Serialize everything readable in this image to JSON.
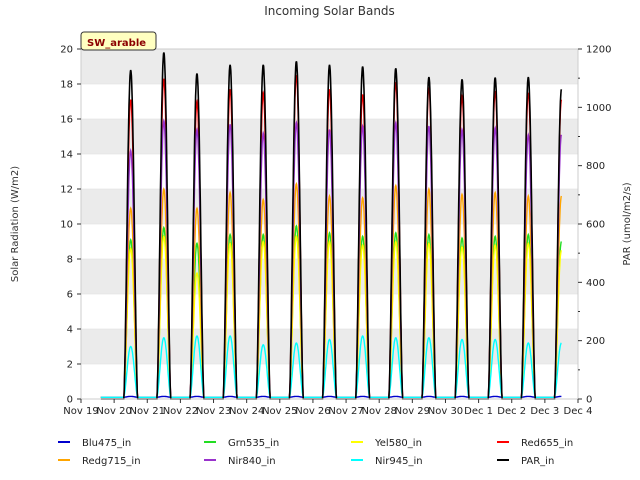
{
  "chart_data": {
    "type": "line",
    "title": "Incoming Solar Bands",
    "badge": "SW_arable",
    "ylabel": "Solar Radiation (W/m2)",
    "y2label": "PAR (umol/m2/s)",
    "ylim": [
      0,
      20
    ],
    "y2lim": [
      0,
      1200
    ],
    "yticks": [
      "0",
      "2",
      "4",
      "6",
      "8",
      "10",
      "12",
      "14",
      "16",
      "18",
      "20"
    ],
    "y2ticks": [
      "0",
      "200",
      "400",
      "600",
      "800",
      "1000",
      "1200"
    ],
    "xticks": [
      "Nov 19",
      "Nov 20",
      "Nov 21",
      "Nov 22",
      "Nov 23",
      "Nov 24",
      "Nov 25",
      "Nov 26",
      "Nov 27",
      "Nov 28",
      "Nov 29",
      "Nov 30",
      "Dec 1",
      "Dec 2",
      "Dec 3",
      "Dec 4"
    ],
    "xlim": [
      0,
      15
    ],
    "grid": "horizontal bands",
    "legend_position": "bottom",
    "day_index": [
      1,
      2,
      3,
      4,
      5,
      6,
      7,
      8,
      9,
      10,
      11,
      12,
      13,
      14
    ],
    "series": [
      {
        "name": "Blu475_in",
        "color": "#0000cd",
        "axis": "left",
        "peaks": [
          0.15,
          0.15,
          0.15,
          0.15,
          0.15,
          0.15,
          0.15,
          0.15,
          0.15,
          0.15,
          0.15,
          0.15,
          0.15,
          0.15
        ]
      },
      {
        "name": "Grn535_in",
        "color": "#22dd22",
        "axis": "left",
        "peaks": [
          9.1,
          9.8,
          8.9,
          9.4,
          9.4,
          9.9,
          9.5,
          9.3,
          9.5,
          9.4,
          9.2,
          9.3,
          9.4,
          9.0
        ]
      },
      {
        "name": "Yel580_in",
        "color": "#ffff00",
        "axis": "left",
        "peaks": [
          8.6,
          9.3,
          7.2,
          8.9,
          9.0,
          9.3,
          9.0,
          8.8,
          9.0,
          8.9,
          8.7,
          8.8,
          8.9,
          8.5
        ]
      },
      {
        "name": "Red655_in",
        "color": "#ff0000",
        "axis": "left",
        "peaks": [
          17.1,
          18.3,
          17.0,
          17.7,
          17.5,
          18.5,
          17.7,
          17.4,
          18.1,
          17.8,
          17.3,
          17.6,
          17.5,
          17.1
        ]
      },
      {
        "name": "Redg715_in",
        "color": "#ffa500",
        "axis": "left",
        "peaks": [
          10.9,
          12.0,
          10.9,
          11.8,
          11.4,
          12.3,
          11.6,
          11.5,
          12.2,
          12.0,
          11.7,
          11.8,
          11.6,
          11.6
        ]
      },
      {
        "name": "Nir840_in",
        "color": "#9932cc",
        "axis": "left",
        "peaks": [
          14.2,
          15.9,
          15.4,
          15.7,
          15.2,
          15.8,
          15.4,
          15.6,
          15.8,
          15.6,
          15.4,
          15.5,
          15.1,
          15.1
        ]
      },
      {
        "name": "Nir945_in",
        "color": "#00ffff",
        "axis": "left",
        "peaks": [
          3.0,
          3.5,
          3.6,
          3.6,
          3.1,
          3.2,
          3.4,
          3.6,
          3.5,
          3.5,
          3.4,
          3.4,
          3.2,
          3.2
        ]
      },
      {
        "name": "PAR_in",
        "color": "#000000",
        "axis": "right",
        "peaks": [
          1128,
          1188,
          1116,
          1146,
          1146,
          1158,
          1146,
          1140,
          1134,
          1104,
          1096,
          1102,
          1104,
          1062
        ]
      }
    ]
  }
}
